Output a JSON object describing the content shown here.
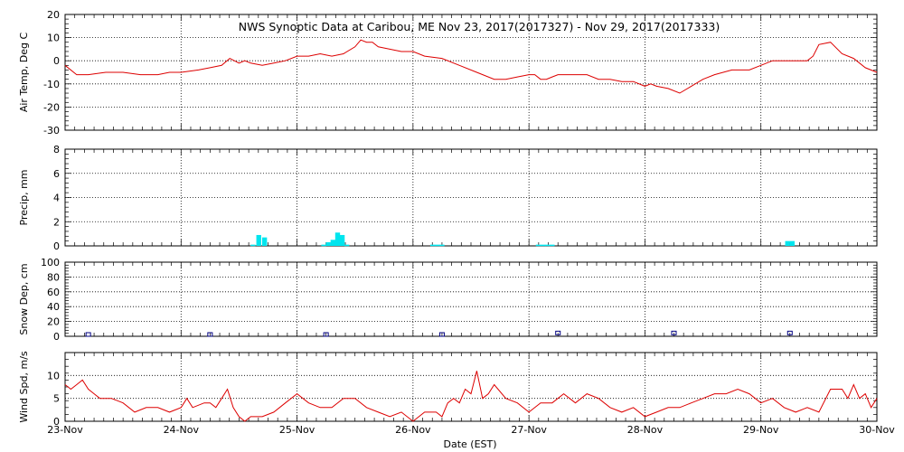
{
  "title": "NWS Synoptic Data at Caribou, ME    Nov 23, 2017(2017327) - Nov 29, 2017(2017333)",
  "xlabel": "Date (EST)",
  "x_ticks": [
    "23-Nov",
    "24-Nov",
    "25-Nov",
    "26-Nov",
    "27-Nov",
    "28-Nov",
    "29-Nov",
    "30-Nov"
  ],
  "colors": {
    "temp_line": "#dd0000",
    "precip_bar": "#00e5ee",
    "snow_marker": "#000080",
    "wind_line": "#dd0000"
  },
  "chart_data": [
    {
      "type": "line",
      "ylabel": "Air Temp, Deg C",
      "ylim": [
        -30,
        20
      ],
      "yticks": [
        -30,
        -20,
        -10,
        0,
        10,
        20
      ],
      "grid": true,
      "x_unit": "days since 23-Nov 00:00 EST",
      "series": [
        {
          "name": "Air Temp",
          "x": [
            0,
            0.1,
            0.2,
            0.35,
            0.5,
            0.65,
            0.8,
            0.9,
            1.0,
            1.15,
            1.25,
            1.35,
            1.42,
            1.5,
            1.55,
            1.6,
            1.7,
            1.8,
            1.9,
            2.0,
            2.1,
            2.2,
            2.3,
            2.4,
            2.5,
            2.55,
            2.6,
            2.65,
            2.7,
            2.8,
            2.9,
            3.0,
            3.1,
            3.25,
            3.4,
            3.55,
            3.7,
            3.8,
            3.9,
            4.0,
            4.05,
            4.1,
            4.15,
            4.2,
            4.25,
            4.3,
            4.4,
            4.5,
            4.6,
            4.7,
            4.8,
            4.9,
            5.0,
            5.05,
            5.1,
            5.2,
            5.3,
            5.4,
            5.5,
            5.6,
            5.75,
            5.9,
            6.0,
            6.1,
            6.2,
            6.3,
            6.4,
            6.45,
            6.5,
            6.6,
            6.7,
            6.8,
            6.9,
            7.0
          ],
          "y": [
            -2,
            -6,
            -6,
            -5,
            -5,
            -6,
            -6,
            -5,
            -5,
            -4,
            -3,
            -2,
            1,
            -1,
            0,
            -1,
            -2,
            -1,
            0,
            2,
            2,
            3,
            2,
            3,
            6,
            9,
            8,
            8,
            6,
            5,
            4,
            4,
            2,
            1,
            -2,
            -5,
            -8,
            -8,
            -7,
            -6,
            -6,
            -8,
            -8,
            -7,
            -6,
            -6,
            -6,
            -6,
            -8,
            -8,
            -9,
            -9,
            -11,
            -10,
            -11,
            -12,
            -14,
            -11,
            -8,
            -6,
            -4,
            -4,
            -2,
            0,
            0,
            0,
            0,
            2,
            7,
            8,
            3,
            1,
            -3,
            -5
          ]
        }
      ]
    },
    {
      "type": "bar",
      "ylabel": "Precip, mm",
      "ylim": [
        0,
        8
      ],
      "yticks": [
        0,
        2,
        4,
        6,
        8
      ],
      "grid": true,
      "x_unit": "days since 23-Nov 00:00 EST",
      "series": [
        {
          "name": "Precip",
          "x": [
            1.62,
            1.67,
            1.72,
            2.23,
            2.27,
            2.31,
            2.35,
            2.39,
            2.43,
            3.17,
            3.21,
            3.25,
            4.08,
            4.12,
            4.16,
            4.2,
            6.23,
            6.27
          ],
          "values": [
            0.1,
            0.9,
            0.7,
            0.1,
            0.3,
            0.5,
            1.1,
            0.9,
            0.1,
            0.1,
            0.1,
            0.1,
            0.1,
            0.1,
            0.1,
            0.1,
            0.4,
            0.4
          ]
        }
      ]
    },
    {
      "type": "scatter",
      "ylabel": "Snow Dep, cm",
      "ylim": [
        0,
        100
      ],
      "yticks": [
        0,
        20,
        40,
        60,
        80,
        100
      ],
      "grid": true,
      "x_unit": "days since 23-Nov 00:00 EST",
      "series": [
        {
          "name": "Snow Depth",
          "x": [
            0.2,
            1.25,
            2.25,
            3.25,
            4.25,
            5.25,
            6.25
          ],
          "y": [
            0,
            0,
            0,
            0,
            2,
            2,
            2
          ]
        }
      ]
    },
    {
      "type": "line",
      "ylabel": "Wind Spd, m/s",
      "ylim": [
        0,
        15
      ],
      "yticks": [
        0,
        5,
        10
      ],
      "grid": true,
      "x_unit": "days since 23-Nov 00:00 EST",
      "series": [
        {
          "name": "Wind Speed",
          "x": [
            0,
            0.05,
            0.1,
            0.15,
            0.2,
            0.25,
            0.3,
            0.4,
            0.5,
            0.6,
            0.7,
            0.8,
            0.9,
            1.0,
            1.05,
            1.1,
            1.2,
            1.25,
            1.3,
            1.35,
            1.4,
            1.45,
            1.5,
            1.55,
            1.6,
            1.7,
            1.8,
            1.9,
            2.0,
            2.1,
            2.2,
            2.3,
            2.4,
            2.5,
            2.6,
            2.7,
            2.8,
            2.9,
            3.0,
            3.1,
            3.2,
            3.25,
            3.3,
            3.35,
            3.4,
            3.45,
            3.5,
            3.55,
            3.6,
            3.65,
            3.7,
            3.8,
            3.9,
            4.0,
            4.1,
            4.2,
            4.3,
            4.4,
            4.5,
            4.6,
            4.7,
            4.8,
            4.9,
            5.0,
            5.1,
            5.2,
            5.3,
            5.4,
            5.5,
            5.6,
            5.7,
            5.8,
            5.9,
            6.0,
            6.1,
            6.2,
            6.3,
            6.4,
            6.5,
            6.6,
            6.7,
            6.75,
            6.8,
            6.85,
            6.9,
            6.95,
            7.0
          ],
          "y": [
            8,
            7,
            8,
            9,
            7,
            6,
            5,
            5,
            4,
            2,
            3,
            3,
            2,
            3,
            5,
            3,
            4,
            4,
            3,
            5,
            7,
            3,
            1,
            0,
            1,
            1,
            2,
            4,
            6,
            4,
            3,
            3,
            5,
            5,
            3,
            2,
            1,
            2,
            0,
            2,
            2,
            1,
            4,
            5,
            4,
            7,
            6,
            11,
            5,
            6,
            8,
            5,
            4,
            2,
            4,
            4,
            6,
            4,
            6,
            5,
            3,
            2,
            3,
            1,
            2,
            3,
            3,
            4,
            5,
            6,
            6,
            7,
            6,
            4,
            5,
            3,
            2,
            3,
            2,
            7,
            7,
            5,
            8,
            5,
            6,
            3,
            5
          ]
        }
      ]
    }
  ]
}
